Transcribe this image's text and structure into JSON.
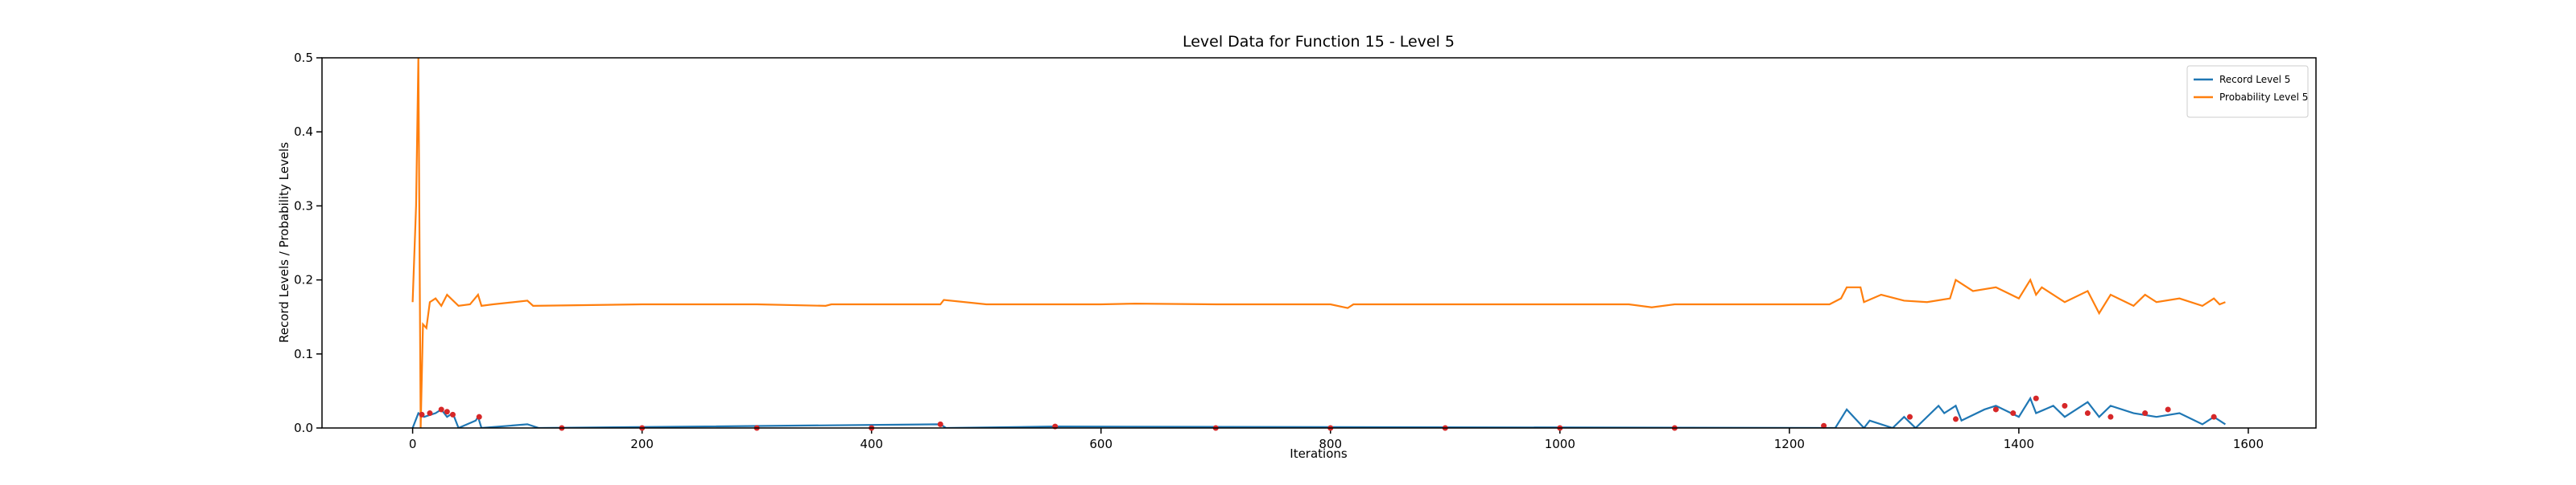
{
  "chart_data": {
    "type": "line",
    "title": "Level Data for Function 15 - Level 5",
    "xlabel": "Iterations",
    "ylabel": "Record Levels / Probability Levels",
    "xlim": [
      -79,
      1659
    ],
    "ylim": [
      0,
      0.5
    ],
    "xticks": [
      0,
      200,
      400,
      600,
      800,
      1000,
      1200,
      1400,
      1600
    ],
    "yticks": [
      {
        "value": 0,
        "label": "0.0"
      },
      0.1,
      0.2,
      0.3,
      0.4,
      0.5
    ],
    "legend": "upper right",
    "series": [
      {
        "name": "Record Level 5",
        "color": "#1f77b4",
        "x": [
          0,
          5,
          10,
          20,
          25,
          30,
          35,
          40,
          55,
          57,
          60,
          100,
          110,
          460,
          465,
          560,
          1240,
          1250,
          1265,
          1270,
          1290,
          1300,
          1310,
          1330,
          1335,
          1345,
          1350,
          1370,
          1380,
          1400,
          1410,
          1415,
          1430,
          1440,
          1460,
          1470,
          1480,
          1500,
          1520,
          1540,
          1560,
          1570,
          1580
        ],
        "values": [
          0,
          0.02,
          0.015,
          0.02,
          0.025,
          0.015,
          0.02,
          0.0,
          0.01,
          0.015,
          0.0,
          0.005,
          0.0,
          0.005,
          0.0,
          0.002,
          0.0,
          0.025,
          0.0,
          0.01,
          0.0,
          0.015,
          0.0,
          0.03,
          0.02,
          0.03,
          0.01,
          0.025,
          0.03,
          0.015,
          0.04,
          0.02,
          0.03,
          0.015,
          0.035,
          0.015,
          0.03,
          0.02,
          0.015,
          0.02,
          0.005,
          0.015,
          0.005
        ]
      },
      {
        "name": "Probability Level 5",
        "color": "#ff7f0e",
        "x": [
          0,
          3,
          5,
          7,
          9,
          12,
          15,
          20,
          25,
          30,
          40,
          50,
          57,
          60,
          70,
          100,
          105,
          200,
          300,
          360,
          365,
          400,
          460,
          463,
          500,
          560,
          600,
          630,
          700,
          800,
          815,
          820,
          900,
          1000,
          1060,
          1080,
          1100,
          1200,
          1235,
          1245,
          1250,
          1262,
          1265,
          1280,
          1300,
          1320,
          1340,
          1345,
          1360,
          1380,
          1400,
          1410,
          1415,
          1420,
          1440,
          1460,
          1470,
          1480,
          1500,
          1510,
          1520,
          1540,
          1560,
          1570,
          1575,
          1580
        ],
        "values": [
          0.17,
          0.3,
          0.5,
          0.0,
          0.14,
          0.135,
          0.17,
          0.175,
          0.165,
          0.18,
          0.165,
          0.167,
          0.18,
          0.165,
          0.167,
          0.172,
          0.165,
          0.167,
          0.167,
          0.165,
          0.167,
          0.167,
          0.167,
          0.173,
          0.167,
          0.167,
          0.167,
          0.168,
          0.167,
          0.167,
          0.162,
          0.167,
          0.167,
          0.167,
          0.167,
          0.163,
          0.167,
          0.167,
          0.167,
          0.175,
          0.19,
          0.19,
          0.17,
          0.18,
          0.172,
          0.17,
          0.175,
          0.2,
          0.185,
          0.19,
          0.175,
          0.2,
          0.18,
          0.19,
          0.17,
          0.185,
          0.155,
          0.18,
          0.165,
          0.18,
          0.17,
          0.175,
          0.165,
          0.175,
          0.167,
          0.17
        ]
      }
    ],
    "record_points": {
      "color": "#d62728",
      "x": [
        8,
        15,
        25,
        30,
        35,
        58,
        130,
        200,
        300,
        400,
        460,
        560,
        700,
        800,
        900,
        1000,
        1100,
        1230,
        1305,
        1345,
        1380,
        1395,
        1415,
        1440,
        1460,
        1480,
        1510,
        1530,
        1570
      ],
      "values": [
        0.018,
        0.02,
        0.025,
        0.022,
        0.018,
        0.015,
        0,
        0,
        0,
        0,
        0.005,
        0.002,
        0,
        0,
        0,
        0,
        0,
        0.003,
        0.015,
        0.012,
        0.025,
        0.02,
        0.04,
        0.03,
        0.02,
        0.015,
        0.02,
        0.025,
        0.015
      ]
    }
  }
}
